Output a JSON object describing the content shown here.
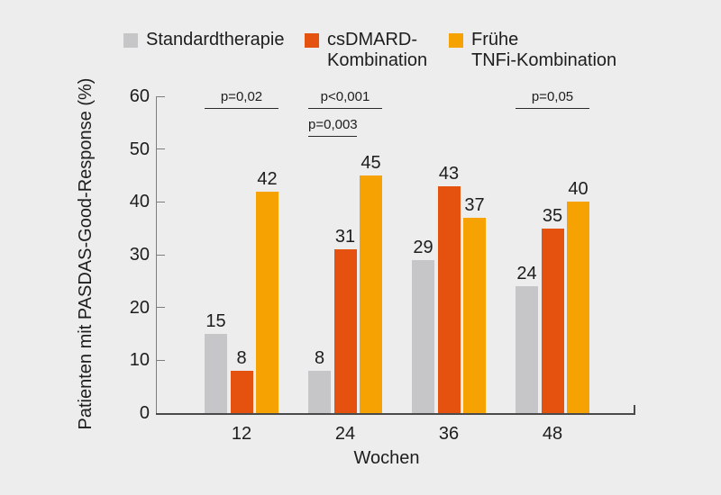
{
  "colors": {
    "background": "#ededee",
    "text": "#1d1d1b",
    "axis_dark": "#4a4a4a",
    "axis_light": "#7d7d7d",
    "series_gray": "#c6c6c8",
    "series_red_orange": "#e5520f",
    "series_orange": "#f6a203"
  },
  "legend": {
    "items": [
      {
        "lines": [
          "Standardtherapie"
        ],
        "swatch_icon": "gray-square"
      },
      {
        "lines": [
          "csDMARD-",
          "Kombination"
        ],
        "swatch_icon": "red-orange-square"
      },
      {
        "lines": [
          "Frühe",
          "TNFi-Kombination"
        ],
        "swatch_icon": "orange-square"
      }
    ]
  },
  "chart_data": {
    "type": "bar",
    "title": "",
    "categories": [
      "12",
      "24",
      "36",
      "48"
    ],
    "series": [
      {
        "name": "Standardtherapie",
        "color": "#c6c6c8",
        "values": [
          15,
          8,
          29,
          24
        ]
      },
      {
        "name": "csDMARD-Kombination",
        "color": "#e5520f",
        "values": [
          8,
          31,
          43,
          35
        ]
      },
      {
        "name": "Frühe TNFi-Kombination",
        "color": "#f6a203",
        "values": [
          42,
          45,
          37,
          40
        ]
      }
    ],
    "xlabel": "Wochen",
    "ylabel": "Patienten mit PASDAS-Good-Response (%)",
    "ylim": [
      0,
      60
    ],
    "yticks": [
      0,
      10,
      20,
      30,
      40,
      50,
      60
    ],
    "grid": false,
    "legend_position": "top",
    "annotations": [
      {
        "label": "p=0,02",
        "group": 0,
        "from_series": 0,
        "to_series": 2,
        "row": 0
      },
      {
        "label": "p<0,001",
        "group": 1,
        "from_series": 0,
        "to_series": 2,
        "row": 0
      },
      {
        "label": "p=0,003",
        "group": 1,
        "from_series": 0,
        "to_series": 1,
        "row": 1
      },
      {
        "label": "p=0,05",
        "group": 3,
        "from_series": 0,
        "to_series": 2,
        "row": 0
      }
    ]
  }
}
